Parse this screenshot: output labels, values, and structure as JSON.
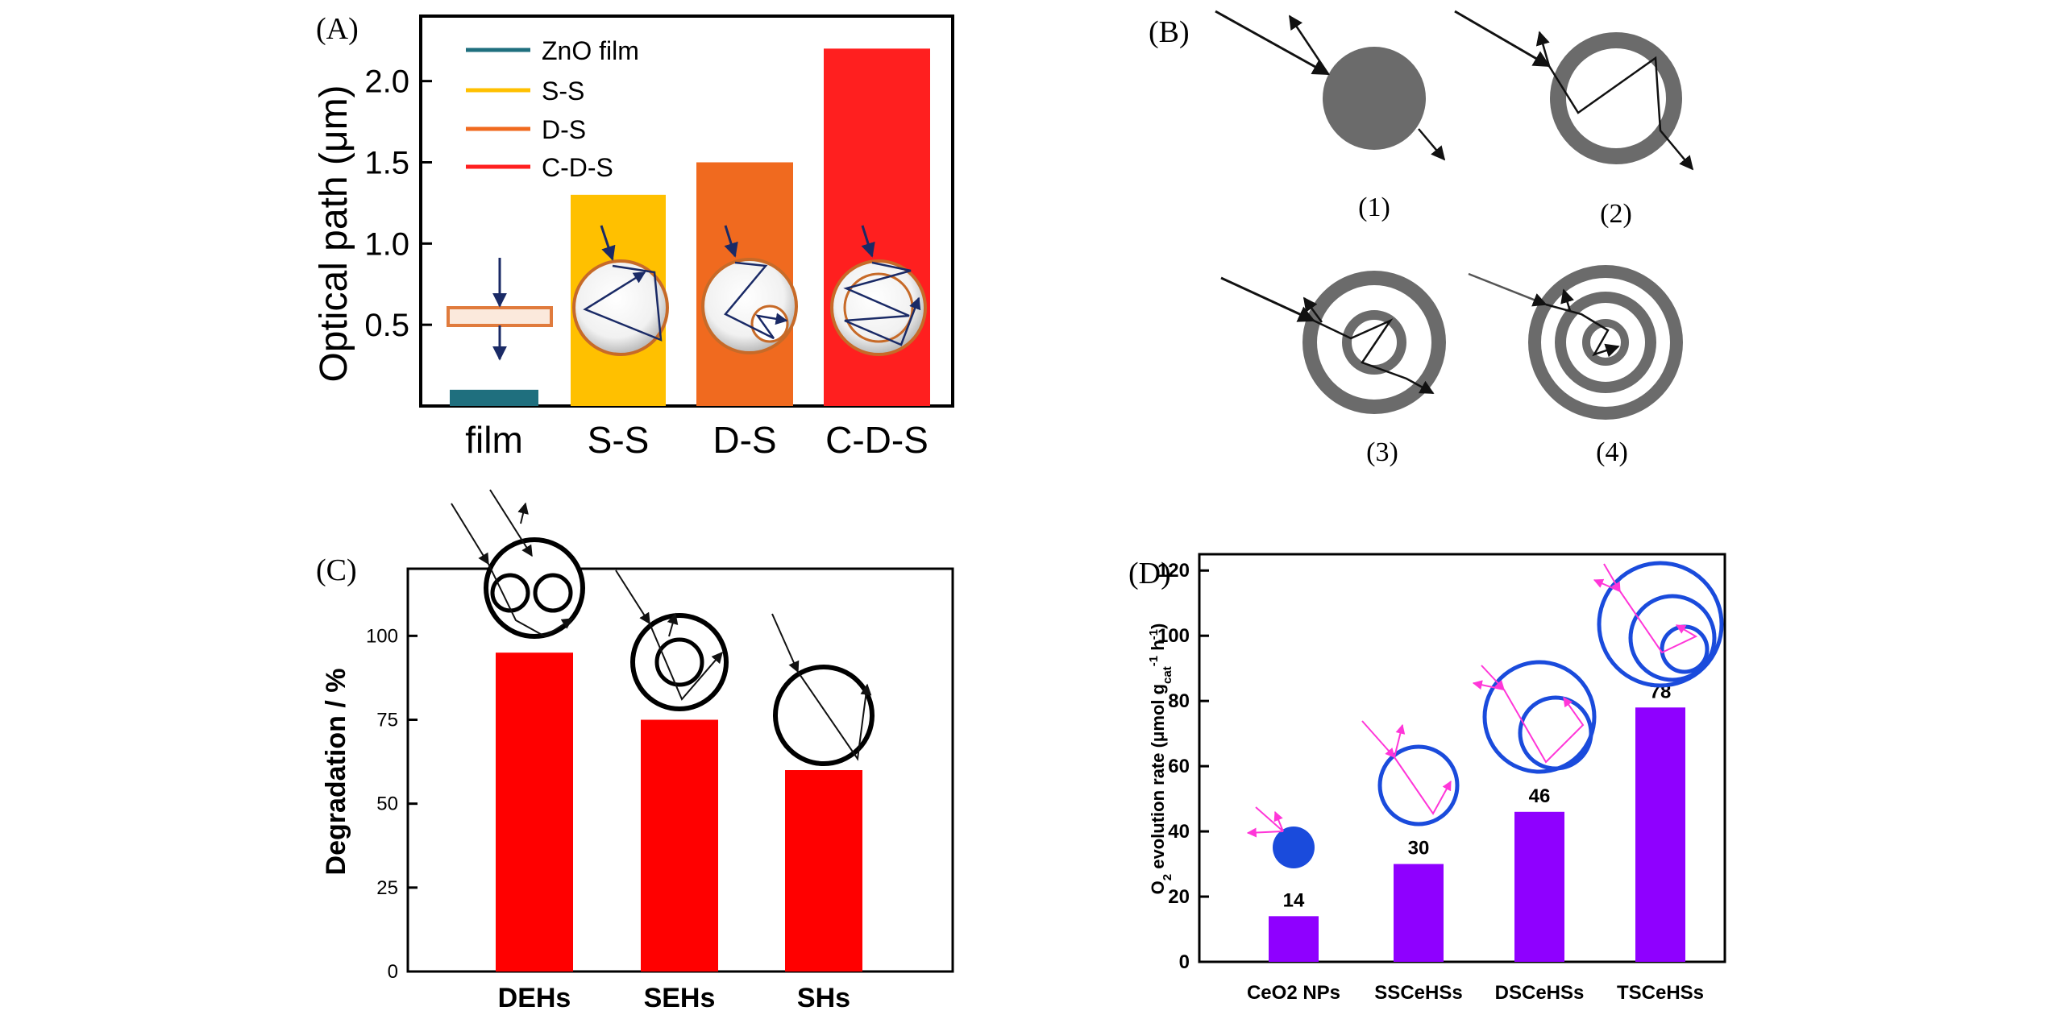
{
  "colors": {
    "zno_film": "#1f6f7e",
    "ss": "#ffc000",
    "ds": "#f06a1f",
    "cds": "#ff1f1f",
    "degradation_bar": "#ff0000",
    "o2_bar": "#8f00ff",
    "shell_gray": "#6b6b6b",
    "arrow_navy": "#1a2a66",
    "blue_sphere": "#1a4bdc",
    "pink_ray": "#ff36d8"
  },
  "panel_a": {
    "panel_label": "(A)",
    "chart_data": {
      "type": "bar",
      "categories": [
        "film",
        "S-S",
        "D-S",
        "C-D-S"
      ],
      "values": [
        0.1,
        1.3,
        1.5,
        2.2
      ],
      "ylabel": "Optical path (μm)",
      "xlabel": "",
      "ylim": [
        0,
        2.4
      ],
      "yticks": [
        "0.5",
        "1.0",
        "1.5",
        "2.0"
      ],
      "legend": [
        "ZnO film",
        "S-S",
        "D-S",
        "C-D-S"
      ],
      "legend_position": "top-left"
    }
  },
  "panel_b": {
    "panel_label": "(B)",
    "labels": [
      "(1)",
      "(2)",
      "(3)",
      "(4)"
    ]
  },
  "panel_c": {
    "panel_label": "(C)",
    "chart_data": {
      "type": "bar",
      "categories": [
        "DEHs",
        "SEHs",
        "SHs"
      ],
      "values": [
        95,
        75,
        60
      ],
      "ylabel": "Degradation / %",
      "xlabel": "",
      "ylim": [
        0,
        120
      ],
      "yticks": [
        "0",
        "25",
        "50",
        "75",
        "100"
      ]
    }
  },
  "panel_d": {
    "panel_label": "(D)",
    "chart_data": {
      "type": "bar",
      "categories": [
        "CeO2 NPs",
        "SSCeHSs",
        "DSCeHSs",
        "TSCeHSs"
      ],
      "values": [
        14,
        30,
        46,
        78
      ],
      "data_labels": [
        "14",
        "30",
        "46",
        "78"
      ],
      "ylabel_parts": [
        "O",
        "2",
        " evolution rate (μmol g",
        "cat",
        "-1",
        " h",
        "-1",
        ")"
      ],
      "xlabel": "",
      "ylim": [
        0,
        125
      ],
      "yticks": [
        "0",
        "20",
        "40",
        "60",
        "80",
        "100",
        "120"
      ]
    }
  }
}
